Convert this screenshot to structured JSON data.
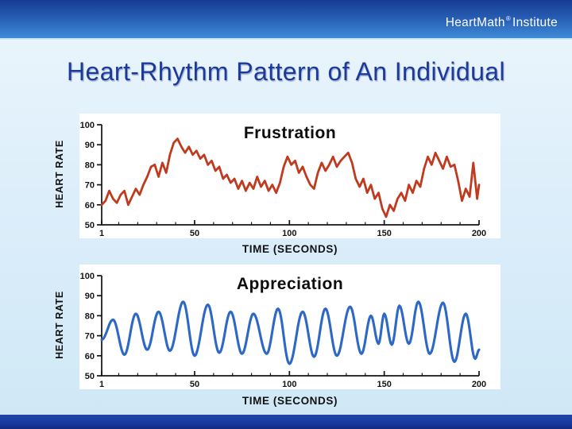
{
  "header": {
    "brand": "HeartMath",
    "registered": "®",
    "brand_suffix": "Institute"
  },
  "title": "Heart-Rhythm Pattern of An Individual",
  "colors": {
    "header_top": "#163c92",
    "header_bottom": "#3f8cd8",
    "slide_bg": "#ddeefa",
    "footer": "#18399c",
    "title_text": "#1d3a9a",
    "frustration_line": "#c03a1e",
    "appreciation_line": "#2d68c6",
    "axis": "#141414",
    "panel_bg": "#ffffff"
  },
  "chart_data": [
    {
      "type": "line",
      "title": "Frustration",
      "xlabel": "TIME (SECONDS)",
      "ylabel": "HEART RATE",
      "xlim": [
        1,
        200
      ],
      "ylim": [
        50,
        100
      ],
      "x_ticks": [
        1,
        50,
        100,
        150,
        200
      ],
      "y_ticks": [
        50,
        60,
        70,
        80,
        90,
        100
      ],
      "x_minor_step": 10,
      "grid": false,
      "legend": "none",
      "line_color": "#c03a1e",
      "line_width": 2.8,
      "interpolation": "linear",
      "points": [
        [
          1,
          60
        ],
        [
          3,
          62
        ],
        [
          5,
          67
        ],
        [
          7,
          63
        ],
        [
          9,
          61
        ],
        [
          11,
          65
        ],
        [
          13,
          67
        ],
        [
          15,
          60
        ],
        [
          17,
          64
        ],
        [
          19,
          68
        ],
        [
          21,
          65
        ],
        [
          23,
          70
        ],
        [
          25,
          74
        ],
        [
          27,
          79
        ],
        [
          29,
          80
        ],
        [
          31,
          74
        ],
        [
          33,
          81
        ],
        [
          35,
          76
        ],
        [
          37,
          85
        ],
        [
          39,
          91
        ],
        [
          41,
          93
        ],
        [
          43,
          89
        ],
        [
          45,
          86
        ],
        [
          47,
          89
        ],
        [
          49,
          85
        ],
        [
          51,
          87
        ],
        [
          53,
          83
        ],
        [
          55,
          85
        ],
        [
          57,
          80
        ],
        [
          59,
          82
        ],
        [
          61,
          77
        ],
        [
          63,
          79
        ],
        [
          65,
          73
        ],
        [
          67,
          75
        ],
        [
          69,
          71
        ],
        [
          71,
          73
        ],
        [
          73,
          68
        ],
        [
          75,
          72
        ],
        [
          77,
          67
        ],
        [
          79,
          71
        ],
        [
          81,
          68
        ],
        [
          83,
          74
        ],
        [
          85,
          69
        ],
        [
          87,
          72
        ],
        [
          89,
          67
        ],
        [
          91,
          70
        ],
        [
          93,
          66
        ],
        [
          95,
          71
        ],
        [
          97,
          79
        ],
        [
          99,
          84
        ],
        [
          101,
          80
        ],
        [
          103,
          82
        ],
        [
          105,
          76
        ],
        [
          107,
          79
        ],
        [
          109,
          74
        ],
        [
          111,
          70
        ],
        [
          113,
          68
        ],
        [
          115,
          76
        ],
        [
          117,
          81
        ],
        [
          119,
          77
        ],
        [
          121,
          80
        ],
        [
          123,
          84
        ],
        [
          125,
          79
        ],
        [
          127,
          82
        ],
        [
          129,
          84
        ],
        [
          131,
          86
        ],
        [
          133,
          81
        ],
        [
          135,
          73
        ],
        [
          137,
          69
        ],
        [
          139,
          73
        ],
        [
          141,
          66
        ],
        [
          143,
          70
        ],
        [
          145,
          63
        ],
        [
          147,
          66
        ],
        [
          149,
          58
        ],
        [
          151,
          54
        ],
        [
          153,
          60
        ],
        [
          155,
          57
        ],
        [
          157,
          63
        ],
        [
          159,
          66
        ],
        [
          161,
          62
        ],
        [
          163,
          70
        ],
        [
          165,
          66
        ],
        [
          167,
          72
        ],
        [
          169,
          69
        ],
        [
          171,
          78
        ],
        [
          173,
          84
        ],
        [
          175,
          80
        ],
        [
          177,
          86
        ],
        [
          179,
          82
        ],
        [
          181,
          78
        ],
        [
          183,
          84
        ],
        [
          185,
          79
        ],
        [
          187,
          80
        ],
        [
          189,
          72
        ],
        [
          191,
          62
        ],
        [
          193,
          68
        ],
        [
          195,
          64
        ],
        [
          197,
          81
        ],
        [
          199,
          63
        ],
        [
          200,
          70
        ]
      ]
    },
    {
      "type": "line",
      "title": "Appreciation",
      "xlabel": "TIME (SECONDS)",
      "ylabel": "HEART RATE",
      "xlim": [
        1,
        200
      ],
      "ylim": [
        50,
        100
      ],
      "x_ticks": [
        1,
        50,
        100,
        150,
        200
      ],
      "y_ticks": [
        50,
        60,
        70,
        80,
        90,
        100
      ],
      "x_minor_step": 10,
      "grid": false,
      "legend": "none",
      "line_color": "#2d68c6",
      "line_width": 3.1,
      "interpolation": "cosine",
      "points": [
        [
          1,
          68
        ],
        [
          7,
          78
        ],
        [
          13,
          60.5
        ],
        [
          19,
          81
        ],
        [
          25,
          63
        ],
        [
          31,
          82
        ],
        [
          37,
          62.5
        ],
        [
          44,
          87
        ],
        [
          50,
          60
        ],
        [
          57,
          85.5
        ],
        [
          63,
          61.5
        ],
        [
          69,
          82
        ],
        [
          75,
          61
        ],
        [
          81,
          81
        ],
        [
          88,
          61
        ],
        [
          94,
          83.5
        ],
        [
          100,
          56
        ],
        [
          107,
          82
        ],
        [
          113,
          59.5
        ],
        [
          119,
          83.5
        ],
        [
          125,
          60
        ],
        [
          132,
          84.5
        ],
        [
          138,
          61
        ],
        [
          143,
          80
        ],
        [
          147,
          66
        ],
        [
          150,
          81
        ],
        [
          154,
          65.5
        ],
        [
          158,
          85
        ],
        [
          163,
          66
        ],
        [
          168,
          87
        ],
        [
          174,
          61
        ],
        [
          181,
          86.5
        ],
        [
          187,
          57
        ],
        [
          193,
          81
        ],
        [
          198,
          58.5
        ],
        [
          200,
          63
        ]
      ]
    }
  ]
}
